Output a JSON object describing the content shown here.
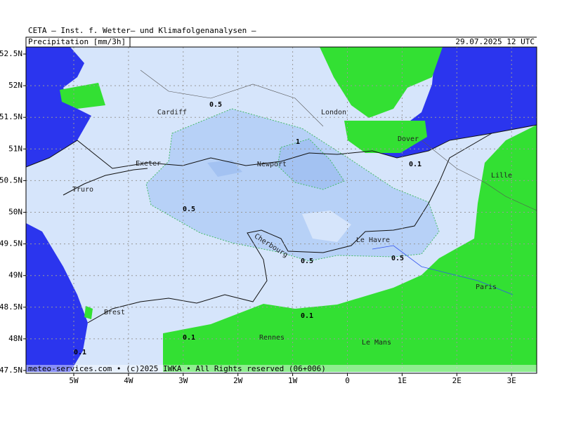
{
  "header": {
    "title": "CETA – Inst. f. Wetter– und Klimafolgenanalysen –",
    "parameter": "Precipitation [mm/3h]",
    "valid_time": "29.07.2025 12 UTC"
  },
  "map": {
    "lat_labels": [
      "52.5N",
      "52N",
      "51.5N",
      "51N",
      "50.5N",
      "50N",
      "49.5N",
      "49N",
      "48.5N",
      "48N",
      "47.5N"
    ],
    "lon_labels": [
      "5W",
      "4W",
      "3W",
      "2W",
      "1W",
      "0",
      "1E",
      "2E",
      "3E"
    ],
    "places": [
      "Cardiff",
      "London",
      "Dover",
      "Exeter",
      "Newport",
      "Truro",
      "Lille",
      "Le Havre",
      "Cherbourg",
      "Paris",
      "Brest",
      "Rennes",
      "Le Mans"
    ],
    "contour_labels": [
      0.5,
      1,
      0.1,
      0.5,
      0.5,
      0.5,
      0.1,
      0.1,
      0.1
    ],
    "footer": "meteo-services.com • (c)2025 IWKA • All Rights reserved (06+006)"
  }
}
